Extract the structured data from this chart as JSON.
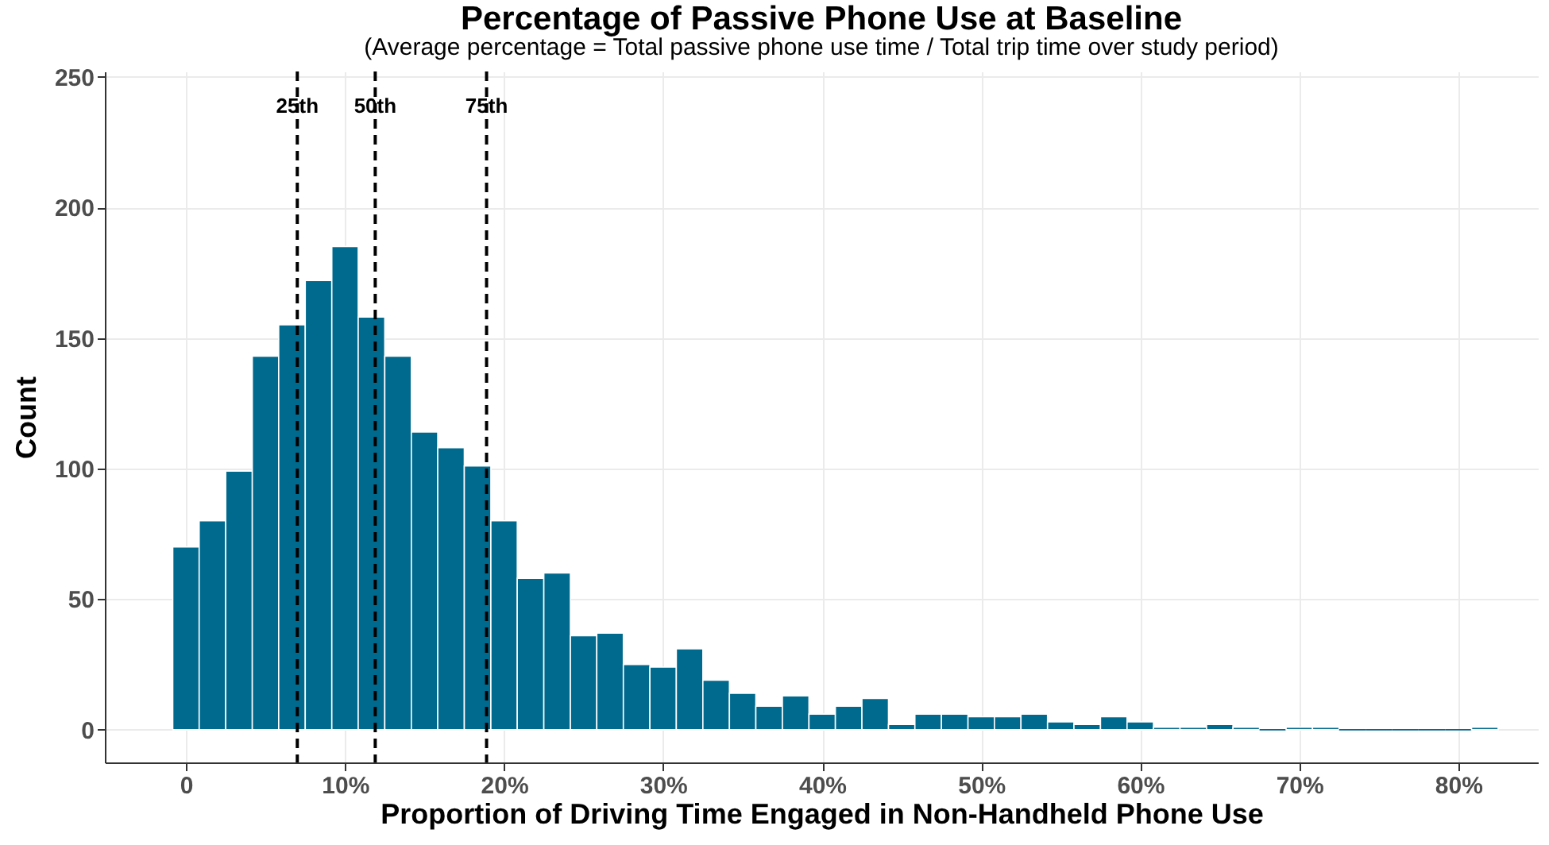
{
  "chart_data": {
    "type": "histogram",
    "title": "Percentage of Passive Phone Use at Baseline",
    "subtitle": "(Average percentage = Total passive phone use time / Total trip time over study period)",
    "xlabel": "Proportion of Driving Time Engaged in Non-Handheld Phone Use",
    "ylabel": "Count",
    "bins": [
      -0.83,
      0.83,
      2.5,
      4.17,
      5.83,
      7.5,
      9.17,
      10.83,
      12.5,
      14.17,
      15.83,
      17.5,
      19.17,
      20.83,
      22.5,
      24.17,
      25.83,
      27.5,
      29.17,
      30.83,
      32.5,
      34.17,
      35.83,
      37.5,
      39.17,
      40.83,
      42.5,
      44.17,
      45.83,
      47.5,
      49.17,
      50.83,
      52.5,
      54.17,
      55.83,
      57.5,
      59.17,
      60.83,
      62.5,
      64.17,
      65.83,
      67.5,
      69.17,
      70.83,
      72.5,
      74.17,
      75.83,
      77.5,
      79.17,
      80.83,
      82.5
    ],
    "values": [
      70,
      80,
      99,
      143,
      155,
      172,
      185,
      158,
      143,
      114,
      108,
      101,
      80,
      58,
      60,
      36,
      37,
      25,
      24,
      31,
      19,
      14,
      9,
      13,
      6,
      9,
      12,
      2,
      6,
      6,
      5,
      5,
      6,
      3,
      2,
      5,
      3,
      1,
      1,
      2,
      1,
      0,
      1,
      1,
      0,
      0,
      0,
      0,
      0,
      1
    ],
    "color": "#006a8e",
    "xlim": [
      -5.1,
      85
    ],
    "xticks": [
      {
        "value": 0,
        "label": "0"
      },
      {
        "value": 10,
        "label": "10%"
      },
      {
        "value": 20,
        "label": "20%"
      },
      {
        "value": 30,
        "label": "30%"
      },
      {
        "value": 40,
        "label": "40%"
      },
      {
        "value": 50,
        "label": "50%"
      },
      {
        "value": 60,
        "label": "60%"
      },
      {
        "value": 70,
        "label": "70%"
      },
      {
        "value": 80,
        "label": "80%"
      }
    ],
    "ylim": [
      -12.5,
      252
    ],
    "yticks": [
      0,
      50,
      100,
      150,
      200,
      250
    ],
    "ref_lines": [
      {
        "axis": "x",
        "value": 7,
        "label": "25th",
        "color": "#000000",
        "line_style": "dashed"
      },
      {
        "axis": "x",
        "value": 11.9,
        "label": "50th",
        "color": "#000000",
        "line_style": "dashed"
      },
      {
        "axis": "x",
        "value": 18.9,
        "label": "75th",
        "color": "#000000",
        "line_style": "dashed"
      }
    ],
    "grid": true
  }
}
